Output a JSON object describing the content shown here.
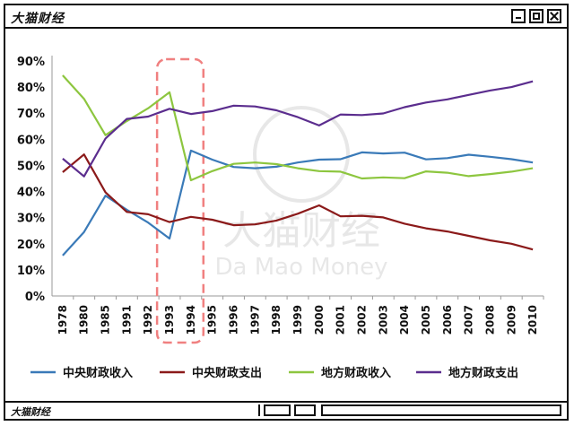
{
  "window": {
    "title": "大猫财经",
    "status_text": "大猫财经",
    "controls": {
      "minimize": "minimize-icon",
      "maximize": "maximize-icon",
      "close": "close-icon"
    }
  },
  "watermark": {
    "brand_cn": "大猫财经",
    "brand_en": "Da Mao Money"
  },
  "chart_data": {
    "type": "line",
    "title": "",
    "xlabel": "",
    "ylabel": "",
    "categories": [
      "1978",
      "1980",
      "1985",
      "1991",
      "1992",
      "1993",
      "1994",
      "1995",
      "1996",
      "1997",
      "1998",
      "1999",
      "2000",
      "2001",
      "2002",
      "2003",
      "2004",
      "2005",
      "2006",
      "2007",
      "2008",
      "2009",
      "2010"
    ],
    "ylim": [
      0,
      90
    ],
    "yticks": [
      "0%",
      "10%",
      "20%",
      "30%",
      "40%",
      "50%",
      "60%",
      "70%",
      "80%",
      "90%"
    ],
    "grid": false,
    "legend_position": "bottom",
    "highlight": {
      "categories": [
        "1993",
        "1994"
      ],
      "style": "dashed-rounded-rect",
      "color": "#f08080"
    },
    "series": [
      {
        "name": "中央财政收入",
        "color": "#3a7ab8",
        "values": [
          15.5,
          24.5,
          38.4,
          33,
          28.1,
          22,
          55.7,
          52.2,
          49.4,
          48.9,
          49.5,
          51.1,
          52.2,
          52.4,
          55,
          54.6,
          54.9,
          52.3,
          52.8,
          54.1,
          53.3,
          52.4,
          51.1
        ]
      },
      {
        "name": "中央财政支出",
        "color": "#8b1a1a",
        "values": [
          47.4,
          54.2,
          39.7,
          32.2,
          31.3,
          28.3,
          30.3,
          29.2,
          27.1,
          27.4,
          28.9,
          31.5,
          34.7,
          30.5,
          30.7,
          30.1,
          27.7,
          25.9,
          24.7,
          23,
          21.3,
          20,
          17.8
        ]
      },
      {
        "name": "地方财政收入",
        "color": "#8dc63f",
        "values": [
          84.5,
          75.5,
          61.6,
          67,
          71.9,
          78,
          44.3,
          47.8,
          50.6,
          51.1,
          50.5,
          48.9,
          47.8,
          47.6,
          45,
          45.4,
          45.1,
          47.7,
          47.2,
          45.9,
          46.7,
          47.6,
          48.9
        ]
      },
      {
        "name": "地方财政支出",
        "color": "#5b2d8e",
        "values": [
          52.6,
          45.8,
          60.3,
          67.8,
          68.7,
          71.7,
          69.7,
          70.8,
          72.9,
          72.6,
          71.1,
          68.5,
          65.3,
          69.5,
          69.3,
          69.9,
          72.3,
          74.1,
          75.3,
          77,
          78.7,
          80,
          82.2
        ]
      }
    ]
  }
}
